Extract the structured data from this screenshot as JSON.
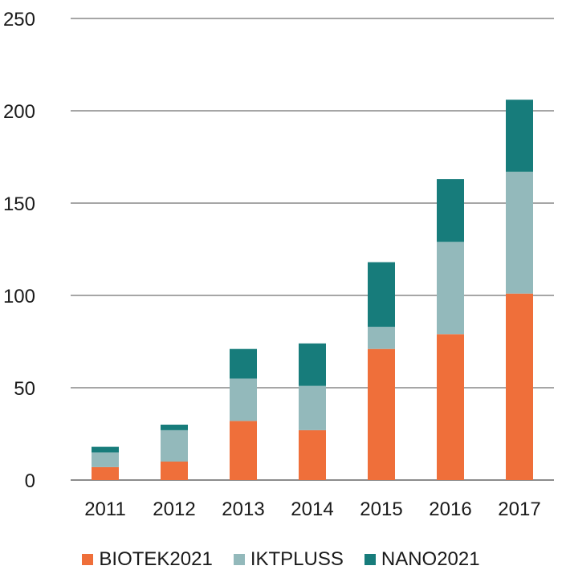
{
  "chart_data": {
    "type": "bar",
    "stacked": true,
    "title": "",
    "xlabel": "",
    "ylabel": "",
    "categories": [
      "2011",
      "2012",
      "2013",
      "2014",
      "2015",
      "2016",
      "2017"
    ],
    "series": [
      {
        "name": "BIOTEK2021",
        "color": "#ef6f3a",
        "values": [
          7,
          10,
          32,
          27,
          71,
          79,
          101
        ]
      },
      {
        "name": "IKTPLUSS",
        "color": "#93b9bb",
        "values": [
          8,
          17,
          23,
          24,
          12,
          50,
          66
        ]
      },
      {
        "name": "NANO2021",
        "color": "#177c7b",
        "values": [
          3,
          3,
          16,
          23,
          35,
          34,
          39
        ]
      }
    ],
    "ylim": [
      0,
      250
    ],
    "yticks": [
      "0",
      "50",
      "100",
      "150",
      "200",
      "250"
    ],
    "grid": true,
    "legend_position": "bottom"
  }
}
